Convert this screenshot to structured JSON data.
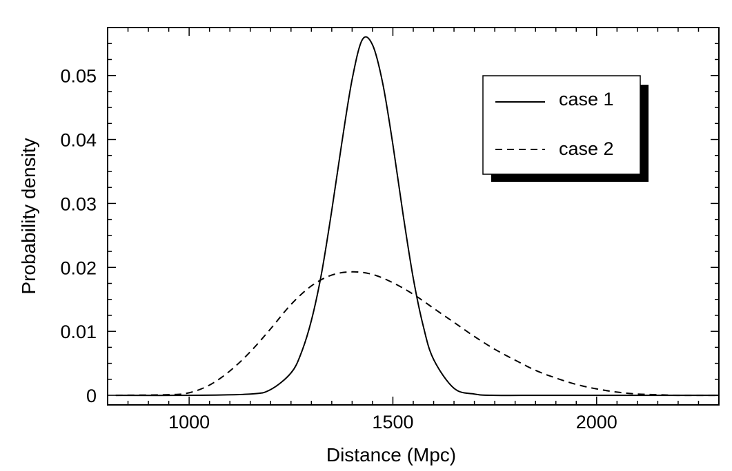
{
  "chart_data": {
    "type": "line",
    "xlabel": "Distance (Mpc)",
    "ylabel": "Probability density",
    "xlim": [
      800,
      2300
    ],
    "ylim": [
      -0.0015,
      0.0575
    ],
    "xticks": [
      1000,
      1500,
      2000
    ],
    "xtick_labels": [
      "1000",
      "1500",
      "2000"
    ],
    "yticks": [
      0,
      0.01,
      0.02,
      0.03,
      0.04,
      0.05
    ],
    "ytick_labels": [
      "0",
      "0.01",
      "0.02",
      "0.03",
      "0.04",
      "0.05"
    ],
    "grid": false,
    "legend_position": "top-right",
    "series": [
      {
        "name": "case 1",
        "style": "solid",
        "color": "#000000",
        "x": [
          820,
          1000,
          1150,
          1200,
          1250,
          1275,
          1300,
          1325,
          1350,
          1375,
          1400,
          1425,
          1450,
          1475,
          1500,
          1525,
          1550,
          1575,
          1600,
          1650,
          1700,
          1750,
          1900,
          2300
        ],
        "y": [
          0,
          0,
          0.0002,
          0.0009,
          0.0035,
          0.0066,
          0.0117,
          0.0191,
          0.0289,
          0.0396,
          0.0494,
          0.0556,
          0.0548,
          0.0488,
          0.0392,
          0.0283,
          0.0183,
          0.0107,
          0.0056,
          0.0011,
          0.0002,
          0,
          0,
          0
        ]
      },
      {
        "name": "case 2",
        "style": "dashed",
        "color": "#000000",
        "x": [
          820,
          950,
          1000,
          1050,
          1100,
          1150,
          1200,
          1250,
          1300,
          1350,
          1400,
          1450,
          1500,
          1550,
          1600,
          1650,
          1700,
          1750,
          1800,
          1850,
          1900,
          1950,
          2000,
          2050,
          2100,
          2150,
          2200,
          2300
        ],
        "y": [
          0,
          0.0001,
          0.0004,
          0.0016,
          0.0038,
          0.0068,
          0.0104,
          0.0142,
          0.0171,
          0.0188,
          0.0193,
          0.0189,
          0.0176,
          0.0158,
          0.0136,
          0.0114,
          0.0092,
          0.0072,
          0.0055,
          0.0039,
          0.0027,
          0.0017,
          0.001,
          0.0005,
          0.0002,
          0.0001,
          0,
          0
        ]
      }
    ]
  }
}
